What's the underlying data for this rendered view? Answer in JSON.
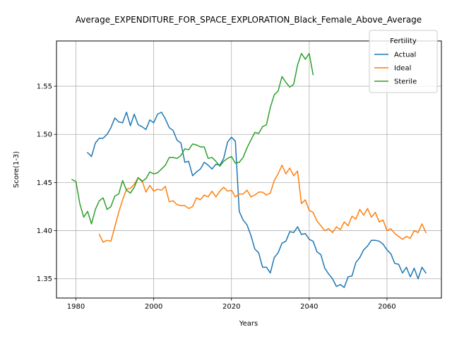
{
  "chart_data": {
    "type": "line",
    "title": "Average_EXPENDITURE_FOR_SPACE_EXPLORATION_Black_Female_Above_Average",
    "xlabel": "Years",
    "ylabel": "Score(1-3)",
    "xlim": [
      1975,
      2074
    ],
    "ylim": [
      1.33,
      1.597
    ],
    "xticks": [
      1980,
      2000,
      2020,
      2040,
      2060
    ],
    "xtick_labels": [
      "1980",
      "2000",
      "2020",
      "2040",
      "2060"
    ],
    "yticks": [
      1.35,
      1.4,
      1.45,
      1.5,
      1.55
    ],
    "ytick_labels": [
      "1.35",
      "1.40",
      "1.45",
      "1.50",
      "1.55"
    ],
    "grid": true,
    "legend": {
      "title": "Fertility",
      "placement": "top-right"
    },
    "series": [
      {
        "name": "Actual",
        "color": "#1f77b4",
        "x": [
          1983,
          1984,
          1985,
          1986,
          1987,
          1988,
          1989,
          1990,
          1991,
          1992,
          1993,
          1994,
          1995,
          1996,
          1997,
          1998,
          1999,
          2000,
          2001,
          2002,
          2003,
          2004,
          2005,
          2006,
          2007,
          2008,
          2009,
          2010,
          2011,
          2012,
          2013,
          2014,
          2015,
          2016,
          2017,
          2018,
          2019,
          2020,
          2021,
          2022,
          2023,
          2024,
          2025,
          2026,
          2027,
          2028,
          2029,
          2030,
          2031,
          2032,
          2033,
          2034,
          2035,
          2036,
          2037,
          2038,
          2039,
          2040,
          2041,
          2042,
          2043,
          2044,
          2045,
          2046,
          2047,
          2048,
          2049,
          2050,
          2051,
          2052,
          2053,
          2054,
          2055,
          2056,
          2057,
          2058,
          2059,
          2060,
          2061,
          2062,
          2063,
          2064,
          2065,
          2066,
          2067,
          2068,
          2069,
          2070
        ],
        "y": [
          1.481,
          1.477,
          1.491,
          1.496,
          1.496,
          1.5,
          1.507,
          1.517,
          1.513,
          1.512,
          1.523,
          1.509,
          1.521,
          1.51,
          1.508,
          1.505,
          1.515,
          1.512,
          1.521,
          1.523,
          1.516,
          1.507,
          1.504,
          1.494,
          1.491,
          1.471,
          1.472,
          1.457,
          1.461,
          1.464,
          1.471,
          1.468,
          1.464,
          1.469,
          1.468,
          1.475,
          1.492,
          1.497,
          1.493,
          1.42,
          1.411,
          1.406,
          1.395,
          1.381,
          1.377,
          1.362,
          1.362,
          1.356,
          1.372,
          1.377,
          1.387,
          1.389,
          1.399,
          1.398,
          1.404,
          1.396,
          1.397,
          1.391,
          1.389,
          1.378,
          1.375,
          1.361,
          1.355,
          1.35,
          1.342,
          1.344,
          1.341,
          1.352,
          1.353,
          1.367,
          1.372,
          1.38,
          1.384,
          1.39,
          1.39,
          1.389,
          1.386,
          1.38,
          1.376,
          1.366,
          1.365,
          1.356,
          1.362,
          1.352,
          1.361,
          1.35,
          1.362,
          1.356
        ]
      },
      {
        "name": "Ideal",
        "color": "#ff7f0e",
        "x": [
          1986,
          1987,
          1988,
          1989,
          1990,
          1991,
          1992,
          1993,
          1994,
          1995,
          1996,
          1997,
          1998,
          1999,
          2000,
          2001,
          2002,
          2003,
          2004,
          2005,
          2006,
          2007,
          2008,
          2009,
          2010,
          2011,
          2012,
          2013,
          2014,
          2015,
          2016,
          2017,
          2018,
          2019,
          2020,
          2021,
          2022,
          2023,
          2024,
          2025,
          2026,
          2027,
          2028,
          2029,
          2030,
          2031,
          2032,
          2033,
          2034,
          2035,
          2036,
          2037,
          2038,
          2039,
          2040,
          2041,
          2042,
          2043,
          2044,
          2045,
          2046,
          2047,
          2048,
          2049,
          2050,
          2051,
          2052,
          2053,
          2054,
          2055,
          2056,
          2057,
          2058,
          2059,
          2060,
          2061,
          2062,
          2063,
          2064,
          2065,
          2066,
          2067,
          2068,
          2069,
          2070
        ],
        "y": [
          1.396,
          1.388,
          1.39,
          1.389,
          1.404,
          1.419,
          1.432,
          1.443,
          1.444,
          1.448,
          1.455,
          1.452,
          1.44,
          1.447,
          1.441,
          1.443,
          1.442,
          1.446,
          1.43,
          1.431,
          1.427,
          1.426,
          1.426,
          1.423,
          1.425,
          1.434,
          1.432,
          1.437,
          1.435,
          1.441,
          1.435,
          1.441,
          1.445,
          1.441,
          1.442,
          1.435,
          1.438,
          1.438,
          1.442,
          1.435,
          1.437,
          1.44,
          1.44,
          1.437,
          1.439,
          1.452,
          1.459,
          1.468,
          1.459,
          1.465,
          1.457,
          1.462,
          1.428,
          1.432,
          1.421,
          1.419,
          1.41,
          1.405,
          1.4,
          1.402,
          1.398,
          1.404,
          1.401,
          1.409,
          1.405,
          1.415,
          1.412,
          1.422,
          1.416,
          1.423,
          1.414,
          1.419,
          1.409,
          1.411,
          1.4,
          1.402,
          1.397,
          1.394,
          1.391,
          1.394,
          1.392,
          1.4,
          1.398,
          1.407,
          1.398
        ]
      },
      {
        "name": "Sterile",
        "color": "#2ca02c",
        "x": [
          1979,
          1980,
          1981,
          1982,
          1983,
          1984,
          1985,
          1986,
          1987,
          1988,
          1989,
          1990,
          1991,
          1992,
          1993,
          1994,
          1995,
          1996,
          1997,
          1998,
          1999,
          2000,
          2001,
          2002,
          2003,
          2004,
          2005,
          2006,
          2007,
          2008,
          2009,
          2010,
          2011,
          2012,
          2013,
          2014,
          2015,
          2016,
          2017,
          2018,
          2019,
          2020,
          2021,
          2022,
          2023,
          2024,
          2025,
          2026,
          2027,
          2028,
          2029,
          2030,
          2031,
          2032,
          2033,
          2034,
          2035,
          2036,
          2037,
          2038,
          2039,
          2040,
          2041
        ],
        "y": [
          1.453,
          1.451,
          1.428,
          1.414,
          1.42,
          1.407,
          1.422,
          1.431,
          1.434,
          1.422,
          1.425,
          1.436,
          1.438,
          1.452,
          1.442,
          1.439,
          1.445,
          1.455,
          1.451,
          1.454,
          1.461,
          1.459,
          1.46,
          1.464,
          1.468,
          1.476,
          1.476,
          1.475,
          1.478,
          1.485,
          1.484,
          1.49,
          1.489,
          1.487,
          1.487,
          1.475,
          1.476,
          1.472,
          1.467,
          1.472,
          1.475,
          1.477,
          1.47,
          1.471,
          1.476,
          1.486,
          1.494,
          1.502,
          1.501,
          1.508,
          1.51,
          1.528,
          1.541,
          1.545,
          1.56,
          1.554,
          1.549,
          1.552,
          1.572,
          1.584,
          1.578,
          1.584,
          1.562
        ]
      }
    ]
  }
}
